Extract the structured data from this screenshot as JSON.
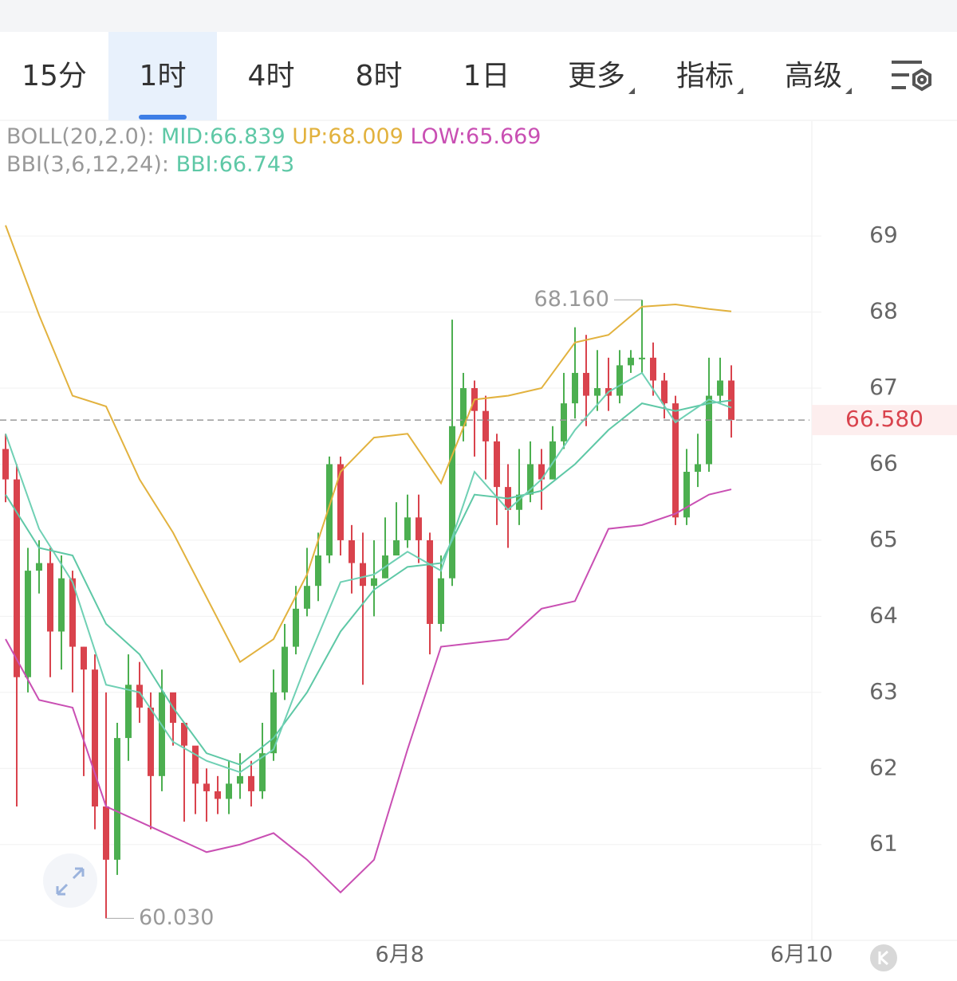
{
  "toolbar": {
    "tabs": [
      "15分",
      "1时",
      "4时",
      "8时",
      "1日",
      "更多",
      "指标",
      "高级"
    ],
    "selected": 1
  },
  "chart_data": {
    "type": "candlestick",
    "legend": {
      "boll": "BOLL(20,2.0):",
      "mid": "MID:66.839",
      "up": "UP:68.009",
      "low": "LOW:65.669",
      "bbi_name": "BBI(3,6,12,24):",
      "bbi": "BBI:66.743"
    },
    "up_color": "#4caf50",
    "down_color": "#d9434d",
    "candles": {
      "open": [
        66.2,
        65.8,
        63.2,
        64.6,
        64.7,
        63.8,
        64.5,
        63.6,
        63.3,
        61.5,
        60.8,
        62.4,
        63.1,
        62.8,
        61.9,
        63.0,
        62.6,
        62.3,
        61.8,
        61.7,
        61.6,
        61.8,
        61.9,
        61.7,
        62.2,
        63.0,
        63.6,
        64.1,
        64.4,
        64.8,
        66.0,
        65.0,
        64.7,
        64.4,
        64.5,
        64.8,
        65.0,
        65.3,
        65.0,
        63.9,
        64.5,
        66.5,
        67.0,
        66.7,
        66.3,
        65.7,
        65.4,
        65.6,
        66.0,
        65.8,
        66.3,
        66.8,
        67.2,
        66.9,
        67.0,
        66.9,
        67.3,
        67.4,
        67.4,
        67.1,
        66.8,
        65.3,
        65.9,
        66.0,
        66.9,
        67.1
      ],
      "high": [
        66.4,
        66.0,
        64.9,
        65.0,
        64.9,
        64.8,
        64.6,
        63.6,
        63.5,
        63.0,
        62.6,
        63.5,
        63.4,
        63.0,
        63.3,
        62.9,
        62.6,
        62.2,
        62.0,
        61.9,
        62.1,
        62.2,
        62.1,
        62.6,
        63.3,
        63.9,
        64.4,
        64.9,
        65.1,
        66.1,
        66.1,
        65.2,
        65.1,
        65.0,
        65.3,
        65.5,
        65.6,
        65.6,
        65.1,
        64.8,
        67.9,
        67.2,
        67.1,
        66.9,
        66.4,
        66.0,
        66.2,
        66.3,
        66.2,
        66.5,
        67.2,
        67.8,
        67.7,
        67.5,
        67.4,
        67.5,
        67.5,
        68.16,
        67.6,
        67.2,
        66.9,
        66.2,
        66.4,
        67.4,
        67.4,
        67.3
      ],
      "low": [
        65.5,
        61.5,
        63.0,
        64.3,
        63.2,
        63.3,
        63.0,
        61.9,
        61.2,
        60.03,
        60.6,
        62.1,
        62.6,
        61.2,
        61.7,
        62.3,
        61.3,
        61.4,
        61.3,
        61.4,
        61.4,
        61.6,
        61.5,
        61.6,
        62.1,
        62.9,
        63.5,
        64.0,
        64.2,
        64.7,
        64.8,
        64.3,
        63.1,
        64.0,
        64.5,
        64.8,
        64.9,
        64.7,
        63.5,
        63.8,
        64.4,
        66.3,
        66.1,
        65.8,
        65.2,
        64.9,
        65.2,
        65.5,
        65.4,
        65.8,
        66.2,
        66.6,
        66.5,
        66.7,
        66.7,
        66.8,
        67.2,
        67.2,
        66.9,
        66.6,
        65.2,
        65.2,
        65.7,
        65.9,
        66.8,
        66.35
      ],
      "close": [
        65.8,
        63.2,
        64.6,
        64.7,
        63.8,
        64.5,
        63.6,
        63.3,
        61.5,
        60.8,
        62.4,
        63.1,
        62.8,
        61.9,
        63.0,
        62.6,
        62.3,
        61.8,
        61.7,
        61.6,
        61.8,
        61.9,
        61.7,
        62.2,
        63.0,
        63.6,
        64.1,
        64.4,
        64.8,
        66.0,
        65.0,
        64.7,
        64.4,
        64.5,
        64.8,
        65.0,
        65.3,
        65.0,
        63.9,
        64.5,
        66.5,
        67.0,
        66.7,
        66.3,
        65.7,
        65.4,
        65.6,
        66.0,
        65.8,
        66.3,
        66.8,
        67.2,
        66.9,
        67.0,
        66.9,
        67.3,
        67.4,
        67.4,
        67.1,
        66.8,
        65.3,
        65.9,
        66.0,
        66.9,
        67.1,
        66.58
      ]
    },
    "line_x": [
      0,
      3,
      6,
      9,
      12,
      15,
      18,
      21,
      24,
      27,
      30,
      33,
      36,
      39,
      42,
      45,
      48,
      51,
      54,
      57,
      60,
      63,
      65
    ],
    "lines": [
      {
        "color": "#e2b23e",
        "values": [
          69.14,
          67.96,
          66.9,
          66.76,
          65.8,
          65.1,
          64.25,
          63.4,
          63.7,
          64.55,
          65.9,
          66.35,
          66.4,
          65.75,
          66.85,
          66.9,
          67.0,
          67.6,
          67.7,
          68.07,
          68.1,
          68.04,
          68.009
        ]
      },
      {
        "color": "#5ec8a6",
        "values": [
          65.6,
          64.9,
          64.8,
          63.9,
          63.5,
          62.8,
          62.2,
          62.05,
          62.4,
          63.0,
          63.8,
          64.35,
          64.65,
          64.7,
          65.6,
          65.55,
          65.65,
          66.0,
          66.45,
          66.8,
          66.7,
          66.8,
          66.839
        ]
      },
      {
        "color": "#c94fb3",
        "values": [
          63.7,
          62.9,
          62.8,
          61.5,
          61.3,
          61.1,
          60.9,
          61.0,
          61.15,
          60.8,
          60.37,
          60.8,
          62.25,
          63.6,
          63.65,
          63.7,
          64.1,
          64.2,
          65.15,
          65.2,
          65.35,
          65.6,
          65.669
        ]
      },
      {
        "color": "#6fd0b4",
        "values": [
          66.4,
          65.15,
          64.45,
          63.1,
          63.0,
          62.35,
          62.1,
          61.95,
          62.25,
          63.4,
          64.45,
          64.55,
          64.85,
          64.6,
          65.9,
          65.4,
          65.8,
          66.45,
          66.95,
          67.2,
          66.55,
          66.85,
          66.743
        ]
      }
    ],
    "xlim": [
      -0.5,
      72
    ],
    "xticks": [
      {
        "value": 35.3,
        "label": "6月8"
      },
      {
        "value": 71.3,
        "label": "6月10"
      }
    ],
    "ylim": [
      59.74,
      70.51
    ],
    "yticks": [
      61,
      62,
      63,
      64,
      65,
      66,
      67,
      68,
      69
    ],
    "grid": true,
    "last_price": {
      "value": 66.58,
      "label": "66.580"
    },
    "annotations": [
      {
        "index": 57,
        "value": 68.16,
        "label": "68.160",
        "side": "left"
      },
      {
        "index": 9,
        "value": 60.03,
        "label": "60.030",
        "side": "right"
      }
    ]
  }
}
